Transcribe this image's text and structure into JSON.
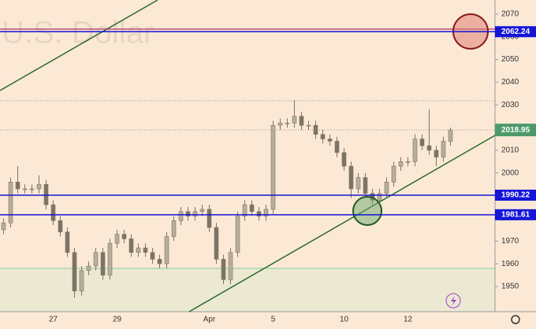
{
  "chart_data": {
    "type": "candlestick",
    "title": "U.S. Dollar",
    "categories": [
      null,
      null,
      null,
      null,
      null,
      null,
      null,
      "27",
      null,
      null,
      null,
      null,
      null,
      null,
      null,
      null,
      "29",
      null,
      null,
      null,
      null,
      null,
      null,
      null,
      null,
      null,
      null,
      null,
      null,
      "Apr",
      null,
      null,
      null,
      null,
      null,
      null,
      null,
      null,
      "5",
      null,
      null,
      null,
      null,
      null,
      null,
      null,
      null,
      null,
      "10",
      null,
      null,
      null,
      null,
      null,
      null,
      null,
      null,
      "12",
      null,
      null,
      null,
      null,
      null,
      null
    ],
    "open": [
      1975,
      1978,
      1996,
      1993,
      1993,
      1993,
      1995,
      1986,
      1979,
      1974,
      1965,
      1948,
      1957,
      1959,
      1965,
      1955,
      1969,
      1973,
      1971,
      1965,
      1967,
      1965,
      1962,
      1960,
      1972,
      1979,
      1983,
      1981,
      1983,
      1984,
      1976,
      1962,
      1953,
      1965,
      1981,
      1986,
      1983,
      1981,
      1984,
      2021,
      2022,
      2022,
      2025,
      2021,
      2021,
      2017,
      2015,
      2014,
      2009,
      2003,
      1993,
      1998,
      1991,
      1988,
      1991,
      1996,
      2003,
      2005,
      2005,
      2015,
      2012,
      2010,
      2007,
      2014
    ],
    "high": [
      1980,
      1998,
      2003,
      1995,
      1995,
      1999,
      1997,
      1988,
      1981,
      1976,
      1967,
      1959,
      1961,
      1967,
      1967,
      1971,
      1975,
      1975,
      1973,
      1969,
      1969,
      1967,
      1964,
      1974,
      1981,
      1985,
      1985,
      1985,
      1986,
      1986,
      1978,
      1964,
      1967,
      1983,
      1988,
      1988,
      1985,
      1986,
      2023,
      2024,
      2024,
      2032,
      2027,
      2023,
      2023,
      2019,
      2017,
      2016,
      2011,
      2005,
      2000,
      2000,
      1993,
      1993,
      1998,
      2005,
      2007,
      2007,
      2017,
      2017,
      2028,
      2012,
      2016,
      2020
    ],
    "low": [
      1973,
      1976,
      1991,
      1991,
      1991,
      1991,
      1984,
      1977,
      1972,
      1963,
      1945,
      1946,
      1955,
      1957,
      1953,
      1953,
      1967,
      1969,
      1963,
      1963,
      1963,
      1960,
      1958,
      1958,
      1970,
      1977,
      1979,
      1979,
      1981,
      1974,
      1960,
      1951,
      1951,
      1963,
      1979,
      1981,
      1979,
      1979,
      1982,
      2019,
      2020,
      2020,
      2019,
      2019,
      2015,
      2013,
      2012,
      2007,
      2001,
      1989,
      1991,
      1989,
      1986,
      1986,
      1989,
      1994,
      2001,
      2003,
      2003,
      2010,
      2008,
      2003,
      2005,
      2012
    ],
    "close": [
      1978,
      1996,
      1993,
      1993,
      1993,
      1995,
      1986,
      1979,
      1974,
      1965,
      1948,
      1957,
      1959,
      1965,
      1955,
      1969,
      1973,
      1971,
      1965,
      1967,
      1965,
      1962,
      1960,
      1972,
      1979,
      1983,
      1981,
      1983,
      1984,
      1976,
      1962,
      1953,
      1965,
      1981,
      1986,
      1983,
      1981,
      1984,
      2021,
      2022,
      2022,
      2025,
      2021,
      2021,
      2017,
      2015,
      2014,
      2009,
      2003,
      1993,
      1998,
      1991,
      1988,
      1991,
      1996,
      2003,
      2005,
      2005,
      2015,
      2012,
      2010,
      2007,
      2014,
      2018.95
    ],
    "color": "#7d7466",
    "ylim": [
      1938.9,
      2076.2
    ],
    "yticks": [
      1950,
      1960,
      1970,
      1980,
      1990,
      2000,
      2010,
      2020,
      2030,
      2040,
      2050,
      2060,
      2070
    ],
    "levels": [
      {
        "value": 2062.24,
        "color": "#1515d8"
      },
      {
        "value": 1990.22,
        "color": "#1515d8"
      },
      {
        "value": 1981.61,
        "color": "#1515d8"
      }
    ],
    "last_price": 2018.95,
    "last_color": "#4c9a6a"
  }
}
